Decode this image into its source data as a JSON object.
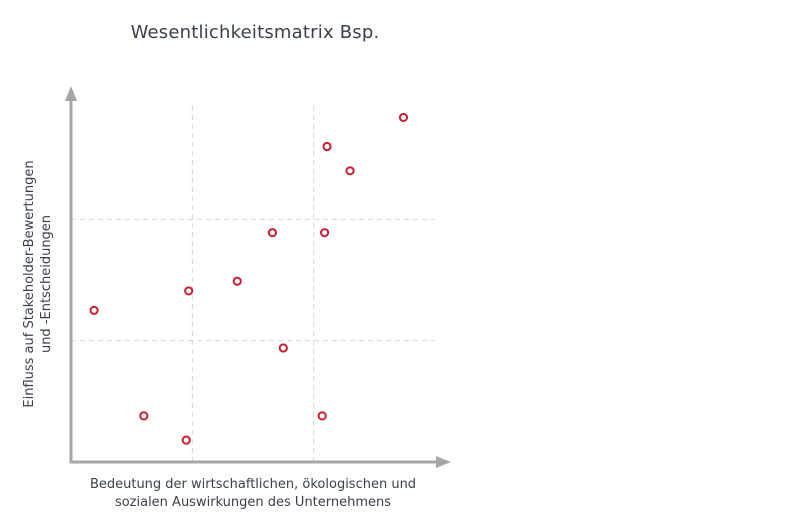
{
  "chart_data": {
    "type": "scatter",
    "title": "Wesentlichkeitsmatrix Bsp.",
    "xlabel": [
      "Bedeutung der wirtschaftlichen, ökologischen und",
      "sozialen Auswirkungen des Unternehmens"
    ],
    "ylabel": [
      "Einfluss auf Stakeholder-Bewertungen",
      "und -Entscheidungen"
    ],
    "xlim": [
      0,
      3
    ],
    "ylim": [
      0,
      3
    ],
    "grid": true,
    "axis_ticks": false,
    "colors": {
      "point": "#cc1f2e",
      "axis": "#a6a6a6",
      "grid": "#d6d6d6"
    },
    "series": [
      {
        "points": [
          {
            "x": 0.19,
            "y": 1.25
          },
          {
            "x": 0.6,
            "y": 0.38
          },
          {
            "x": 0.95,
            "y": 0.18
          },
          {
            "x": 0.97,
            "y": 1.41
          },
          {
            "x": 1.37,
            "y": 1.49
          },
          {
            "x": 1.66,
            "y": 1.89
          },
          {
            "x": 1.75,
            "y": 0.94
          },
          {
            "x": 2.07,
            "y": 0.38
          },
          {
            "x": 2.09,
            "y": 1.89
          },
          {
            "x": 2.11,
            "y": 2.6
          },
          {
            "x": 2.3,
            "y": 2.4
          },
          {
            "x": 2.74,
            "y": 2.84
          }
        ]
      }
    ]
  }
}
